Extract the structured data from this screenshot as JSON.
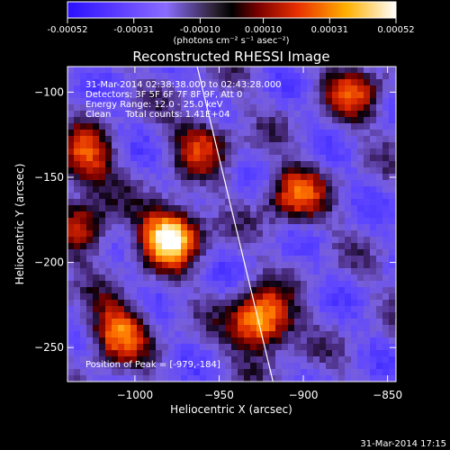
{
  "colorbar": {
    "tick_labels": [
      "-0.00052",
      "-0.00031",
      "-0.00010",
      "0.00010",
      "0.00031",
      "0.00052"
    ],
    "tick_values": [
      -0.00052,
      -0.00031,
      -0.0001,
      0.0001,
      0.00031,
      0.00052
    ],
    "range": [
      -0.00052,
      0.00052
    ],
    "unit_label": "(photons cm⁻² s⁻¹ asec⁻²)"
  },
  "chart_data": {
    "type": "heatmap",
    "title": "Reconstructed RHESSI Image",
    "xlabel": "Heliocentric X (arcsec)",
    "ylabel": "Heliocentric Y (arcsec)",
    "xlim": [
      -1040,
      -845
    ],
    "ylim": [
      -270,
      -85
    ],
    "xticks": [
      -1000,
      -950,
      -900,
      -850
    ],
    "yticks": [
      -100,
      -150,
      -200,
      -250
    ],
    "xtick_labels": [
      "−1000",
      "−950",
      "−900",
      "−850"
    ],
    "ytick_labels": [
      "−100",
      "−150",
      "−200",
      "−250"
    ],
    "limb_line": [
      [
        -963,
        -85
      ],
      [
        -918,
        -270
      ]
    ],
    "bright_sources": [
      {
        "x": -979,
        "y": -184,
        "level": 1.0
      },
      {
        "x": -925,
        "y": -235,
        "level": 0.9
      },
      {
        "x": -1010,
        "y": -240,
        "level": 0.65
      },
      {
        "x": -1030,
        "y": -140,
        "level": 0.55
      },
      {
        "x": -905,
        "y": -160,
        "level": 0.55
      },
      {
        "x": -960,
        "y": -130,
        "level": 0.45
      },
      {
        "x": -870,
        "y": -100,
        "level": 0.45
      },
      {
        "x": -1030,
        "y": -180,
        "level": 0.45
      }
    ],
    "annotations": [
      "31-Mar-2014 02:38:38.000 to 02:43:28.000",
      "Detectors: 3F 5F 6F 7F 8F 9F, Att 0",
      "Energy Range: 12.0 - 25.0 keV",
      "Clean     Total counts: 1.41E+04",
      "Position of Peak = [-979,-184]"
    ]
  },
  "footer": {
    "timestamp": "31-Mar-2014 17:15"
  }
}
